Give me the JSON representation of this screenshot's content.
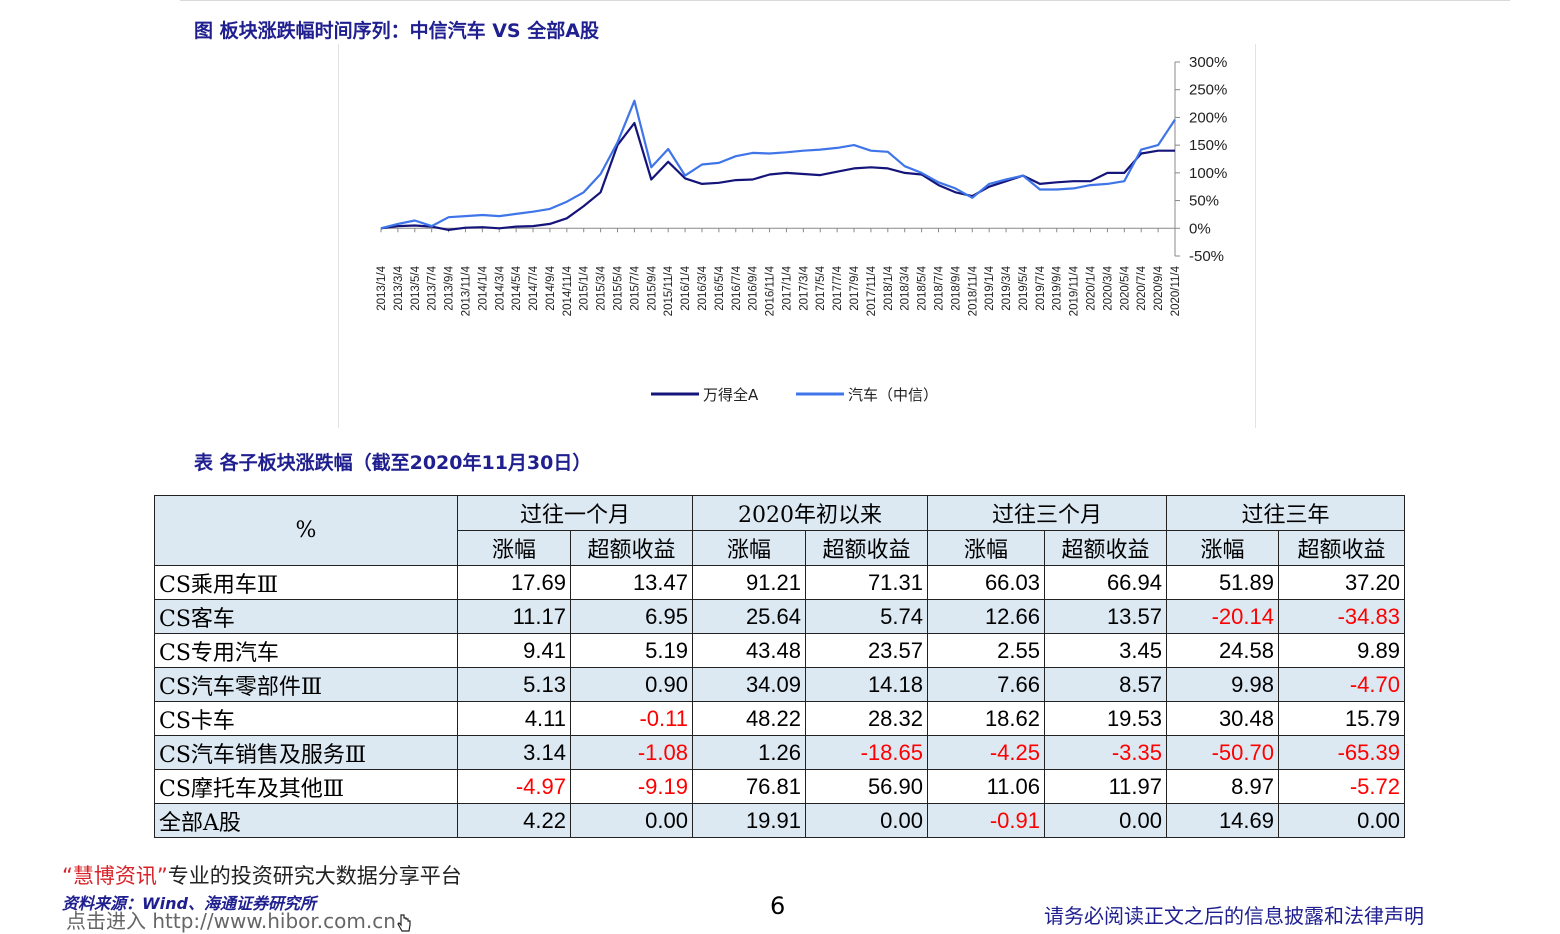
{
  "figure": {
    "title": "图 板块涨跌幅时间序列：中信汽车 VS 全部A股"
  },
  "chart_data": {
    "type": "line",
    "y_ticks": [
      "300%",
      "250%",
      "200%",
      "150%",
      "100%",
      "50%",
      "0%",
      "-50%"
    ],
    "ylim": [
      -50,
      300
    ],
    "x_ticks": [
      "2013/1/4",
      "2013/3/4",
      "2013/5/4",
      "2013/7/4",
      "2013/9/4",
      "2013/11/4",
      "2014/1/4",
      "2014/3/4",
      "2014/5/4",
      "2014/7/4",
      "2014/9/4",
      "2014/11/4",
      "2015/1/4",
      "2015/3/4",
      "2015/5/4",
      "2015/7/4",
      "2015/9/4",
      "2015/11/4",
      "2016/1/4",
      "2016/3/4",
      "2016/5/4",
      "2016/7/4",
      "2016/9/4",
      "2016/11/4",
      "2017/1/4",
      "2017/3/4",
      "2017/5/4",
      "2017/7/4",
      "2017/9/4",
      "2017/11/4",
      "2018/1/4",
      "2018/3/4",
      "2018/5/4",
      "2018/7/4",
      "2018/9/4",
      "2018/11/4",
      "2019/1/4",
      "2019/3/4",
      "2019/5/4",
      "2019/7/4",
      "2019/9/4",
      "2019/11/4",
      "2020/1/4",
      "2020/3/4",
      "2020/5/4",
      "2020/7/4",
      "2020/9/4",
      "2020/11/4"
    ],
    "series": [
      {
        "name": "万得全A",
        "color": "#14147a",
        "values": [
          0,
          4,
          5,
          3,
          -3,
          1,
          2,
          0,
          3,
          4,
          8,
          18,
          40,
          65,
          150,
          190,
          88,
          120,
          90,
          80,
          82,
          87,
          88,
          97,
          100,
          98,
          96,
          102,
          108,
          110,
          108,
          100,
          97,
          78,
          65,
          58,
          75,
          85,
          95,
          80,
          83,
          85,
          85,
          100,
          100,
          135,
          140,
          140
        ]
      },
      {
        "name": "汽车（中信）",
        "color": "#3f75e8",
        "values": [
          0,
          8,
          14,
          4,
          20,
          22,
          24,
          22,
          26,
          30,
          35,
          48,
          65,
          98,
          155,
          230,
          110,
          143,
          95,
          115,
          118,
          130,
          136,
          135,
          137,
          140,
          142,
          145,
          150,
          140,
          138,
          112,
          100,
          83,
          72,
          55,
          80,
          88,
          95,
          70,
          70,
          72,
          78,
          80,
          85,
          142,
          150,
          196
        ]
      }
    ],
    "grid": false,
    "legend_position": "bottom"
  },
  "table": {
    "title": "表 各子板块涨跌幅（截至2020年11月30日）",
    "corner": "%",
    "groups": [
      "过往一个月",
      "2020年初以来",
      "过往三个月",
      "过往三年"
    ],
    "sub": [
      "涨幅",
      "超额收益"
    ],
    "rows": [
      {
        "name": "CS乘用车Ⅲ",
        "values": [
          "17.69",
          "13.47",
          "91.21",
          "71.31",
          "66.03",
          "66.94",
          "51.89",
          "37.20"
        ]
      },
      {
        "name": "CS客车",
        "values": [
          "11.17",
          "6.95",
          "25.64",
          "5.74",
          "12.66",
          "13.57",
          "-20.14",
          "-34.83"
        ]
      },
      {
        "name": "CS专用汽车",
        "values": [
          "9.41",
          "5.19",
          "43.48",
          "23.57",
          "2.55",
          "3.45",
          "24.58",
          "9.89"
        ]
      },
      {
        "name": "CS汽车零部件Ⅲ",
        "values": [
          "5.13",
          "0.90",
          "34.09",
          "14.18",
          "7.66",
          "8.57",
          "9.98",
          "-4.70"
        ]
      },
      {
        "name": "CS卡车",
        "values": [
          "4.11",
          "-0.11",
          "48.22",
          "28.32",
          "18.62",
          "19.53",
          "30.48",
          "15.79"
        ]
      },
      {
        "name": "CS汽车销售及服务Ⅲ",
        "values": [
          "3.14",
          "-1.08",
          "1.26",
          "-18.65",
          "-4.25",
          "-3.35",
          "-50.70",
          "-65.39"
        ]
      },
      {
        "name": "CS摩托车及其他Ⅲ",
        "values": [
          "-4.97",
          "-9.19",
          "76.81",
          "56.90",
          "11.06",
          "11.97",
          "8.97",
          "-5.72"
        ]
      },
      {
        "name": "全部A股",
        "values": [
          "4.22",
          "0.00",
          "19.91",
          "0.00",
          "-0.91",
          "0.00",
          "14.69",
          "0.00"
        ]
      }
    ]
  },
  "footer": {
    "watermark_brand": "“慧博资讯”",
    "watermark_text": "专业的投资研究大数据分享平台",
    "source": "资料来源：Wind、海通证券研究所",
    "watermark_link": "点击进入 http://www.hibor.com.cn",
    "page_number": "6",
    "disclaimer": "请务必阅读正文之后的信息披露和法律声明"
  }
}
